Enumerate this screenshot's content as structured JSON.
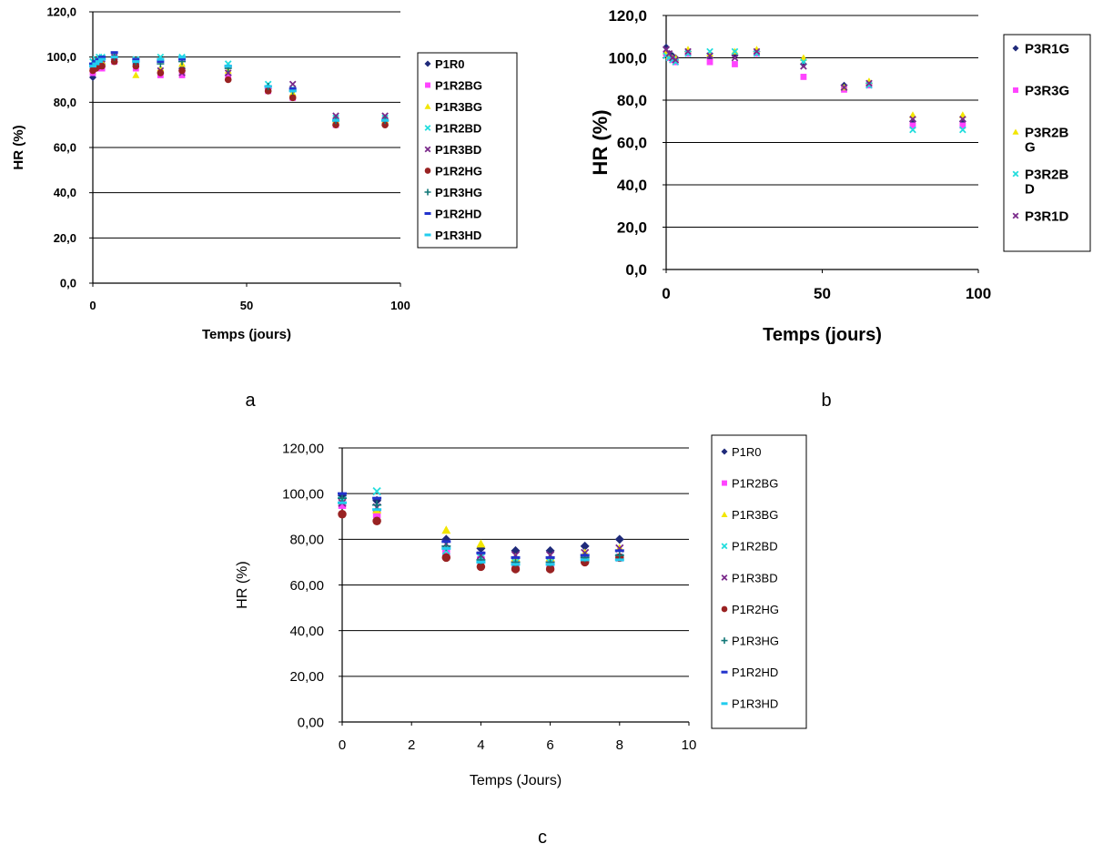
{
  "chart_data": [
    {
      "panel": "a",
      "type": "scatter",
      "ylabel": "HR (%)",
      "xlabel": "Temps (jours)",
      "xlim": [
        0,
        100
      ],
      "ylim": [
        0,
        120
      ],
      "xticks": [
        0,
        50,
        100
      ],
      "yticks": [
        0,
        20,
        40,
        60,
        80,
        100,
        120
      ],
      "ytick_labels": [
        "0,0",
        "20,0",
        "40,0",
        "60,0",
        "80,0",
        "100,0",
        "120,0"
      ],
      "grid": "horizontal",
      "legend": "right",
      "x": [
        0,
        1,
        2,
        3,
        7,
        14,
        22,
        29,
        44,
        57,
        65,
        79,
        95
      ],
      "series": [
        {
          "name": "P1R0",
          "color": "#1f2a7a",
          "marker": "diamond",
          "values": [
            91,
            96,
            97,
            97,
            99,
            97,
            93,
            95,
            92,
            86,
            85,
            70,
            72
          ]
        },
        {
          "name": "P1R2BG",
          "color": "#ff44ff",
          "marker": "square",
          "values": [
            93,
            95,
            95,
            95,
            98,
            95,
            92,
            92,
            91,
            85,
            82,
            70,
            71
          ]
        },
        {
          "name": "P1R3BG",
          "color": "#f2e600",
          "marker": "triangle",
          "values": [
            95,
            96,
            97,
            98,
            99,
            92,
            95,
            97,
            94,
            86,
            84,
            72,
            72
          ]
        },
        {
          "name": "P1R2BD",
          "color": "#22dddd",
          "marker": "x",
          "values": [
            98,
            99,
            100,
            100,
            101,
            99,
            100,
            100,
            97,
            88,
            86,
            73,
            73
          ]
        },
        {
          "name": "P1R3BD",
          "color": "#7a2a8a",
          "marker": "x",
          "values": [
            96,
            97,
            98,
            99,
            100,
            97,
            94,
            93,
            93,
            86,
            88,
            74,
            74
          ]
        },
        {
          "name": "P1R2HG",
          "color": "#992222",
          "marker": "circle",
          "values": [
            94,
            95,
            96,
            96,
            98,
            96,
            93,
            94,
            90,
            85,
            82,
            70,
            70
          ]
        },
        {
          "name": "P1R3HG",
          "color": "#117777",
          "marker": "plus",
          "values": [
            97,
            98,
            99,
            99,
            100,
            98,
            97,
            98,
            95,
            87,
            85,
            72,
            72
          ]
        },
        {
          "name": "P1R2HD",
          "color": "#2233cc",
          "marker": "dash",
          "values": [
            97,
            98,
            99,
            100,
            102,
            99,
            98,
            99,
            96,
            87,
            86,
            72,
            72
          ]
        },
        {
          "name": "P1R3HD",
          "color": "#22ccee",
          "marker": "dash",
          "values": [
            96,
            97,
            98,
            99,
            100,
            98,
            99,
            100,
            96,
            87,
            85,
            72,
            72
          ]
        }
      ]
    },
    {
      "panel": "b",
      "type": "scatter",
      "ylabel": "HR (%)",
      "xlabel": "Temps (jours)",
      "xlim": [
        0,
        100
      ],
      "ylim": [
        0,
        120
      ],
      "xticks": [
        0,
        50,
        100
      ],
      "yticks": [
        0,
        20,
        40,
        60,
        80,
        100,
        120
      ],
      "ytick_labels": [
        "0,0",
        "20,0",
        "40,0",
        "60,0",
        "80,0",
        "100,0",
        "120,0"
      ],
      "grid": "horizontal",
      "legend": "right",
      "x": [
        0,
        1,
        2,
        3,
        7,
        14,
        22,
        29,
        44,
        57,
        65,
        79,
        95
      ],
      "series": [
        {
          "name": "P3R1G",
          "color": "#1f2a7a",
          "marker": "diamond",
          "values": [
            105,
            102,
            101,
            100,
            103,
            100,
            101,
            103,
            97,
            87,
            88,
            70,
            70
          ]
        },
        {
          "name": "P3R3G",
          "color": "#ff44ff",
          "marker": "square",
          "values": [
            102,
            100,
            99,
            98,
            102,
            98,
            97,
            102,
            91,
            85,
            87,
            68,
            68
          ]
        },
        {
          "name": "P3R2B\nG",
          "color": "#f2e600",
          "marker": "triangle",
          "values": [
            103,
            101,
            100,
            100,
            104,
            102,
            103,
            104,
            100,
            86,
            89,
            73,
            73
          ]
        },
        {
          "name": "P3R2B\nD",
          "color": "#22dddd",
          "marker": "x",
          "values": [
            101,
            100,
            99,
            98,
            102,
            103,
            103,
            102,
            98,
            86,
            87,
            66,
            66
          ]
        },
        {
          "name": "P3R1D",
          "color": "#7a2a8a",
          "marker": "x",
          "values": [
            104,
            102,
            100,
            99,
            103,
            101,
            100,
            103,
            96,
            86,
            88,
            71,
            71
          ]
        }
      ]
    },
    {
      "panel": "c",
      "type": "scatter",
      "ylabel": "HR (%)",
      "xlabel": "Temps (Jours)",
      "xlim": [
        0,
        10
      ],
      "ylim": [
        0,
        120
      ],
      "xticks": [
        0,
        2,
        4,
        6,
        8,
        10
      ],
      "yticks": [
        0,
        20,
        40,
        60,
        80,
        100,
        120
      ],
      "ytick_labels": [
        "0,00",
        "20,00",
        "40,00",
        "60,00",
        "80,00",
        "100,00",
        "120,00"
      ],
      "grid": "horizontal",
      "legend": "right",
      "x": [
        0,
        1,
        3,
        4,
        5,
        6,
        7,
        8
      ],
      "series": [
        {
          "name": "P1R0",
          "color": "#1f2a7a",
          "marker": "diamond",
          "values": [
            99,
            97,
            80,
            76,
            75,
            75,
            77,
            80
          ]
        },
        {
          "name": "P1R2BG",
          "color": "#ff44ff",
          "marker": "square",
          "values": [
            95,
            91,
            74,
            71,
            69,
            69,
            71,
            72
          ]
        },
        {
          "name": "P1R3BG",
          "color": "#f2e600",
          "marker": "triangle",
          "values": [
            97,
            93,
            84,
            78,
            72,
            72,
            74,
            76
          ]
        },
        {
          "name": "P1R2BD",
          "color": "#22dddd",
          "marker": "x",
          "values": [
            97,
            101,
            75,
            72,
            70,
            70,
            71,
            72
          ]
        },
        {
          "name": "P1R3BD",
          "color": "#7a2a8a",
          "marker": "x",
          "values": [
            96,
            94,
            78,
            73,
            73,
            73,
            74,
            76
          ]
        },
        {
          "name": "P1R2HG",
          "color": "#992222",
          "marker": "circle",
          "values": [
            91,
            88,
            72,
            68,
            67,
            67,
            70,
            72
          ]
        },
        {
          "name": "P1R3HG",
          "color": "#117777",
          "marker": "plus",
          "values": [
            98,
            95,
            77,
            71,
            70,
            70,
            72,
            73
          ]
        },
        {
          "name": "P1R2HD",
          "color": "#2233cc",
          "marker": "dash",
          "values": [
            100,
            98,
            79,
            74,
            72,
            72,
            73,
            75
          ]
        },
        {
          "name": "P1R3HD",
          "color": "#22ccee",
          "marker": "dash",
          "values": [
            96,
            93,
            76,
            70,
            69,
            69,
            71,
            71
          ]
        }
      ]
    }
  ]
}
